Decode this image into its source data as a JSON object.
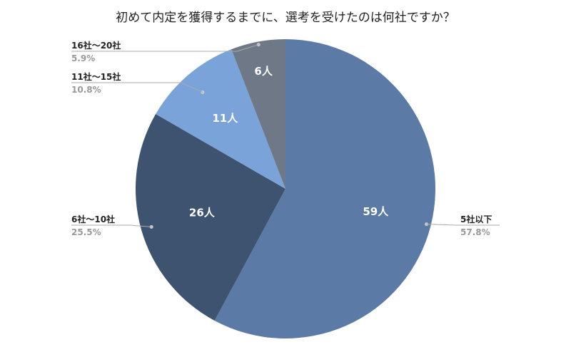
{
  "chart_data": {
    "type": "pie",
    "title": "初めて内定を獲得するまでに、選考を受けたのは何社ですか？",
    "slices": [
      {
        "label": "5社以下",
        "count_label": "59人",
        "value": 59,
        "percent": "57.8%",
        "color": "#5b7ba6"
      },
      {
        "label": "6社〜10社",
        "count_label": "26人",
        "value": 26,
        "percent": "25.5%",
        "color": "#3e536f"
      },
      {
        "label": "11社〜15社",
        "count_label": "11人",
        "value": 11,
        "percent": "10.8%",
        "color": "#7aa3d9"
      },
      {
        "label": "16社〜20社",
        "count_label": "6人",
        "value": 6,
        "percent": "5.9%",
        "color": "#6e7887"
      }
    ]
  }
}
